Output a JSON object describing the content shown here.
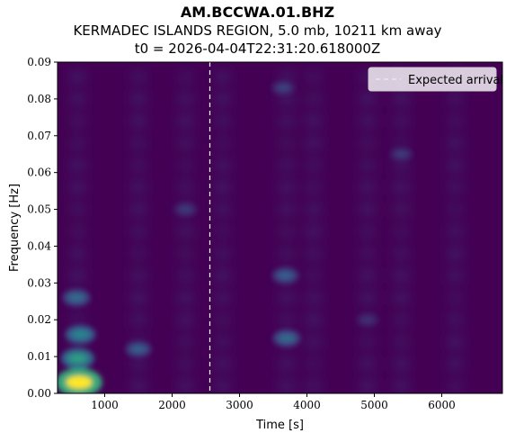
{
  "chart_data": {
    "type": "heatmap",
    "title": "AM.BCCWA.01.BHZ",
    "subtitle": "KERMADEC ISLANDS REGION, 5.0 mb, 10211 km away",
    "subtitle2": "t0 = 2026-04-04T22:31:20.618000Z",
    "xlabel": "Time [s]",
    "ylabel": "Frequency [Hz]",
    "xlim": [
      300,
      6900
    ],
    "ylim": [
      0,
      0.09
    ],
    "xticks": [
      1000,
      2000,
      3000,
      4000,
      5000,
      6000
    ],
    "xtick_labels": [
      "1000",
      "2000",
      "3000",
      "4000",
      "5000",
      "6000"
    ],
    "yticks": [
      0,
      0.01,
      0.02,
      0.03,
      0.04,
      0.05,
      0.06,
      0.07,
      0.08,
      0.09
    ],
    "ytick_labels": [
      "0.00",
      "0.01",
      "0.02",
      "0.03",
      "0.04",
      "0.05",
      "0.06",
      "0.07",
      "0.08",
      "0.09"
    ],
    "colormap": "viridis",
    "expected_arrival": 2560,
    "legend": {
      "label": "Expected arrival",
      "placement": "top-right"
    },
    "hotspots": [
      {
        "t": 620,
        "f": 0.003,
        "level": 1.0
      },
      {
        "t": 600,
        "f": 0.0095,
        "level": 0.55
      },
      {
        "t": 640,
        "f": 0.016,
        "level": 0.45
      },
      {
        "t": 580,
        "f": 0.026,
        "level": 0.35
      },
      {
        "t": 1500,
        "f": 0.012,
        "level": 0.3
      },
      {
        "t": 3700,
        "f": 0.015,
        "level": 0.35
      },
      {
        "t": 3680,
        "f": 0.032,
        "level": 0.3
      },
      {
        "t": 3650,
        "f": 0.083,
        "level": 0.2
      },
      {
        "t": 2200,
        "f": 0.05,
        "level": 0.18
      },
      {
        "t": 4900,
        "f": 0.02,
        "level": 0.15
      },
      {
        "t": 5400,
        "f": 0.065,
        "level": 0.18
      }
    ]
  }
}
